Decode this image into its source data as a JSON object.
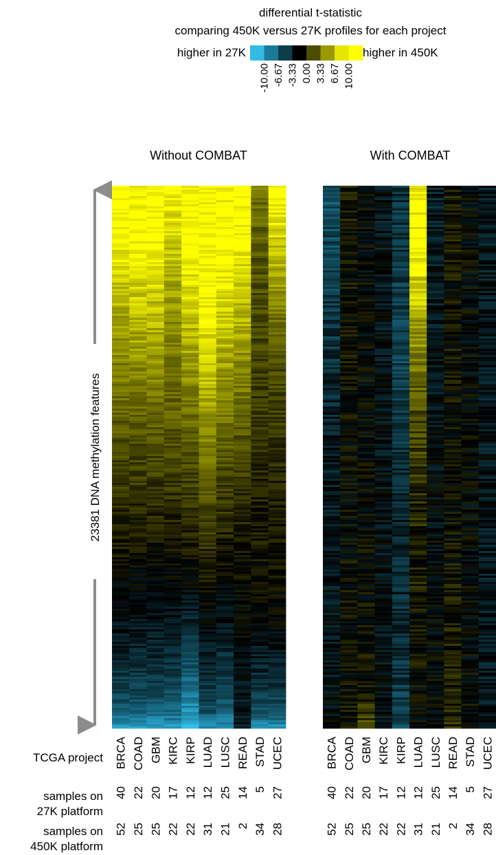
{
  "chart_data": {
    "type": "heatmap",
    "legend": {
      "title_line1": "differential t-statistic",
      "title_line2": "comparing 450K versus 27K profiles for each project",
      "low_label": "higher in 27K",
      "high_label": "higher in 450K",
      "breaks": [
        "-10.00",
        "-6.67",
        "-3.33",
        "0.00",
        "3.33",
        "6.67",
        "10.00"
      ],
      "colors": [
        "#33bbe6",
        "#1c7a99",
        "#0e3d4c",
        "#000000",
        "#4d4d00",
        "#999900",
        "#e6e600",
        "#ffff00"
      ]
    },
    "y_axis_label": "23381 DNA methylation features",
    "row_label_projects": "TCGA project",
    "row_label_27k": [
      "samples on",
      "27K platform"
    ],
    "row_label_450k": [
      "samples on",
      "450K platform"
    ],
    "projects": [
      "BRCA",
      "COAD",
      "GBM",
      "KIRC",
      "KIRP",
      "LUAD",
      "LUSC",
      "READ",
      "STAD",
      "UCEC"
    ],
    "samples_27k": [
      "40",
      "22",
      "20",
      "17",
      "12",
      "12",
      "25",
      "14",
      "5",
      "27"
    ],
    "samples_450k": [
      "52",
      "25",
      "25",
      "22",
      "22",
      "31",
      "21",
      "2",
      "34",
      "28"
    ],
    "panels": [
      {
        "title": "Without COMBAT",
        "column_profiles_t": {
          "BRCA": [
            [
              0,
              10
            ],
            [
              0.08,
              10
            ],
            [
              0.25,
              7
            ],
            [
              0.5,
              3
            ],
            [
              0.7,
              0.5
            ],
            [
              0.85,
              -1.5
            ],
            [
              0.95,
              -4
            ],
            [
              1.0,
              -8
            ]
          ],
          "COAD": [
            [
              0,
              10
            ],
            [
              0.1,
              10
            ],
            [
              0.28,
              7
            ],
            [
              0.5,
              3
            ],
            [
              0.7,
              0.3
            ],
            [
              0.88,
              -2
            ],
            [
              0.96,
              -4.5
            ],
            [
              1.0,
              -8
            ]
          ],
          "GBM": [
            [
              0,
              10
            ],
            [
              0.1,
              10
            ],
            [
              0.28,
              7
            ],
            [
              0.5,
              3
            ],
            [
              0.7,
              0.3
            ],
            [
              0.88,
              -2
            ],
            [
              0.96,
              -4.5
            ],
            [
              1.0,
              -8
            ]
          ],
          "KIRC": [
            [
              0,
              10
            ],
            [
              0.06,
              9
            ],
            [
              0.22,
              6.5
            ],
            [
              0.5,
              3
            ],
            [
              0.7,
              0.3
            ],
            [
              0.88,
              -2.5
            ],
            [
              0.96,
              -5
            ],
            [
              1.0,
              -8
            ]
          ],
          "KIRP": [
            [
              0,
              10
            ],
            [
              0.12,
              10
            ],
            [
              0.3,
              7
            ],
            [
              0.5,
              3.5
            ],
            [
              0.72,
              0.3
            ],
            [
              0.85,
              -3
            ],
            [
              0.95,
              -7
            ],
            [
              1.0,
              -10
            ]
          ],
          "LUAD": [
            [
              0,
              10
            ],
            [
              0.2,
              10
            ],
            [
              0.35,
              8
            ],
            [
              0.55,
              4
            ],
            [
              0.75,
              0.5
            ],
            [
              0.9,
              -2
            ],
            [
              0.97,
              -4
            ],
            [
              1.0,
              -8
            ]
          ],
          "LUSC": [
            [
              0,
              10
            ],
            [
              0.14,
              10
            ],
            [
              0.3,
              7.5
            ],
            [
              0.5,
              3.5
            ],
            [
              0.72,
              0.3
            ],
            [
              0.88,
              -2.5
            ],
            [
              0.96,
              -4.5
            ],
            [
              1.0,
              -8
            ]
          ],
          "READ": [
            [
              0,
              10
            ],
            [
              0.1,
              10
            ],
            [
              0.3,
              6.5
            ],
            [
              0.5,
              3
            ],
            [
              0.7,
              0.5
            ],
            [
              0.88,
              -0.5
            ],
            [
              1.0,
              -1.5
            ]
          ],
          "STAD": [
            [
              0,
              5
            ],
            [
              0.15,
              3.5
            ],
            [
              0.4,
              2.5
            ],
            [
              0.6,
              1.2
            ],
            [
              0.8,
              0
            ],
            [
              0.92,
              -2.5
            ],
            [
              0.98,
              -5
            ],
            [
              1.0,
              -8
            ]
          ],
          "UCEC": [
            [
              0,
              10
            ],
            [
              0.12,
              8
            ],
            [
              0.3,
              3.5
            ],
            [
              0.55,
              1.5
            ],
            [
              0.8,
              0
            ],
            [
              0.92,
              -2.5
            ],
            [
              0.98,
              -5
            ],
            [
              1.0,
              -8
            ]
          ]
        }
      },
      {
        "title": "With COMBAT",
        "column_profiles_t": {
          "BRCA": [
            [
              0,
              -4.5
            ],
            [
              0.2,
              -3
            ],
            [
              0.5,
              -1.5
            ],
            [
              0.8,
              -0.8
            ],
            [
              1.0,
              -0.5
            ]
          ],
          "COAD": [
            [
              0,
              0.8
            ],
            [
              0.5,
              0.3
            ],
            [
              0.9,
              0.2
            ],
            [
              1.0,
              0.8
            ]
          ],
          "GBM": [
            [
              0,
              0
            ],
            [
              0.5,
              0
            ],
            [
              0.92,
              0.5
            ],
            [
              1.0,
              3
            ]
          ],
          "KIRC": [
            [
              0,
              -1
            ],
            [
              0.5,
              -0.8
            ],
            [
              1.0,
              -0.8
            ]
          ],
          "KIRP": [
            [
              0,
              -2.5
            ],
            [
              0.3,
              -3.5
            ],
            [
              0.6,
              -1.8
            ],
            [
              0.9,
              -2.5
            ],
            [
              1.0,
              -4
            ]
          ],
          "LUAD": [
            [
              0,
              10
            ],
            [
              0.12,
              10
            ],
            [
              0.25,
              7
            ],
            [
              0.4,
              3.5
            ],
            [
              0.6,
              1.5
            ],
            [
              0.85,
              0.5
            ],
            [
              1.0,
              0
            ]
          ],
          "LUSC": [
            [
              0,
              -1.5
            ],
            [
              0.5,
              -0.5
            ],
            [
              1.0,
              0
            ]
          ],
          "READ": [
            [
              0,
              1
            ],
            [
              0.5,
              0.3
            ],
            [
              1.0,
              1.5
            ]
          ],
          "STAD": [
            [
              0,
              0
            ],
            [
              0.5,
              -0.2
            ],
            [
              1.0,
              0
            ]
          ],
          "UCEC": [
            [
              0,
              -1.2
            ],
            [
              0.5,
              -1
            ],
            [
              1.0,
              -1.3
            ]
          ]
        }
      }
    ]
  }
}
